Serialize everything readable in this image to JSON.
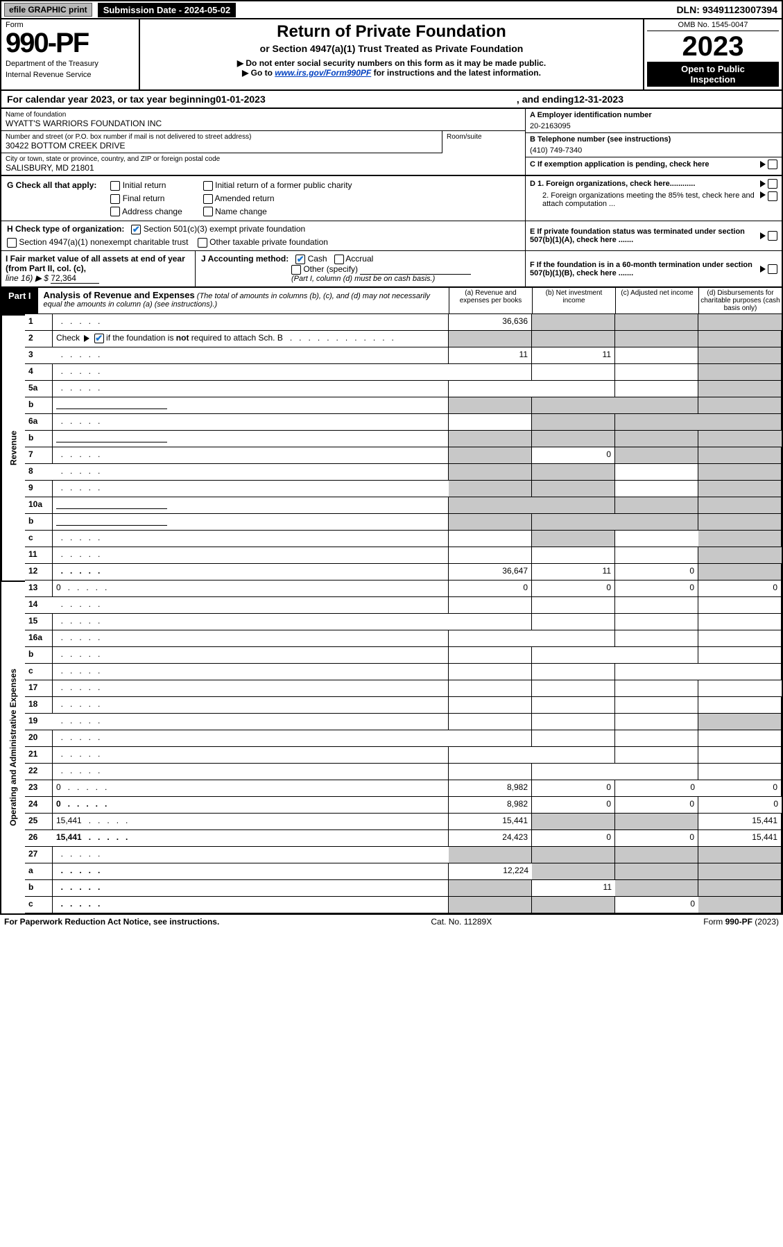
{
  "colors": {
    "black": "#000000",
    "white": "#ffffff",
    "grey_btn": "#b8b8b8",
    "blue_check": "#1976d2",
    "link_blue": "#0040c0",
    "shade": "#c8c8c8"
  },
  "top_bar": {
    "efile": "efile GRAPHIC print",
    "submission": "Submission Date - 2024-05-02",
    "dln": "DLN: 93491123007394"
  },
  "header": {
    "form_word": "Form",
    "form_no": "990-PF",
    "dept": "Department of the Treasury",
    "irs": "Internal Revenue Service",
    "title": "Return of Private Foundation",
    "subtitle": "or Section 4947(a)(1) Trust Treated as Private Foundation",
    "note1": "▶ Do not enter social security numbers on this form as it may be made public.",
    "note2_pre": "▶ Go to ",
    "note2_link": "www.irs.gov/Form990PF",
    "note2_post": " for instructions and the latest information.",
    "omb": "OMB No. 1545-0047",
    "year": "2023",
    "open1": "Open to Public",
    "open2": "Inspection"
  },
  "cal_year": {
    "pre": "For calendar year 2023, or tax year beginning ",
    "begin": "01-01-2023",
    "mid": ", and ending ",
    "end": "12-31-2023"
  },
  "entity": {
    "name_label": "Name of foundation",
    "name": "WYATT'S WARRIORS FOUNDATION INC",
    "addr_label": "Number and street (or P.O. box number if mail is not delivered to street address)",
    "addr": "30422 BOTTOM CREEK DRIVE",
    "room_label": "Room/suite",
    "city_label": "City or town, state or province, country, and ZIP or foreign postal code",
    "city": "SALISBURY, MD  21801",
    "a": "A Employer identification number",
    "a_val": "20-2163095",
    "b": "B Telephone number (see instructions)",
    "b_val": "(410) 749-7340",
    "c": "C If exemption application is pending, check here"
  },
  "g": {
    "label": "G Check all that apply:",
    "opts": [
      "Initial return",
      "Final return",
      "Address change",
      "Initial return of a former public charity",
      "Amended return",
      "Name change"
    ],
    "d1": "D 1. Foreign organizations, check here............",
    "d2": "2. Foreign organizations meeting the 85% test, check here and attach computation ...",
    "e": "E  If private foundation status was terminated under section 507(b)(1)(A), check here ......."
  },
  "h": {
    "label": "H Check type of organization:",
    "opt1": "Section 501(c)(3) exempt private foundation",
    "opt2": "Section 4947(a)(1) nonexempt charitable trust",
    "opt3": "Other taxable private foundation"
  },
  "i": {
    "label": "I Fair market value of all assets at end of year (from Part II, col. (c),",
    "line16": "line 16) ▶ $",
    "val": "72,364"
  },
  "j": {
    "label": "J Accounting method:",
    "cash": "Cash",
    "accrual": "Accrual",
    "other": "Other (specify)",
    "note": "(Part I, column (d) must be on cash basis.)"
  },
  "f": "F  If the foundation is in a 60-month termination under section 507(b)(1)(B), check here .......",
  "part1": {
    "label": "Part I",
    "title": "Analysis of Revenue and Expenses",
    "note": " (The total of amounts in columns (b), (c), and (d) may not necessarily equal the amounts in column (a) (see instructions).)",
    "col_a": "(a)   Revenue and expenses per books",
    "col_b": "(b)   Net investment income",
    "col_c": "(c)   Adjusted net income",
    "col_d": "(d)   Disbursements for charitable purposes (cash basis only)"
  },
  "side_rev": "Revenue",
  "side_exp": "Operating and Administrative Expenses",
  "rows": [
    {
      "n": "1",
      "d": "",
      "a": "36,636",
      "b": "",
      "c": "",
      "a_shade": false,
      "b_shade": true,
      "c_shade": true,
      "d_shade": true
    },
    {
      "n": "2",
      "d": "",
      "a": "",
      "b": "",
      "c": "",
      "a_shade": true,
      "b_shade": true,
      "c_shade": true,
      "d_shade": true,
      "has_check": true
    },
    {
      "n": "3",
      "d": "",
      "a": "11",
      "b": "11",
      "c": "",
      "d_shade": true
    },
    {
      "n": "4",
      "d": "",
      "a": "",
      "b": "",
      "c": "",
      "d_shade": true
    },
    {
      "n": "5a",
      "d": "",
      "a": "",
      "b": "",
      "c": "",
      "d_shade": true
    },
    {
      "n": "b",
      "d": "",
      "a": "",
      "b": "",
      "c": "",
      "a_shade": true,
      "b_shade": true,
      "c_shade": true,
      "d_shade": true,
      "has_sub": true
    },
    {
      "n": "6a",
      "d": "",
      "a": "",
      "b": "",
      "c": "",
      "b_shade": true,
      "c_shade": true,
      "d_shade": true
    },
    {
      "n": "b",
      "d": "",
      "a": "",
      "b": "",
      "c": "",
      "a_shade": true,
      "b_shade": true,
      "c_shade": true,
      "d_shade": true,
      "has_sub": true
    },
    {
      "n": "7",
      "d": "",
      "a": "",
      "b": "0",
      "c": "",
      "a_shade": true,
      "c_shade": true,
      "d_shade": true
    },
    {
      "n": "8",
      "d": "",
      "a": "",
      "b": "",
      "c": "",
      "a_shade": true,
      "b_shade": true,
      "d_shade": true
    },
    {
      "n": "9",
      "d": "",
      "a": "",
      "b": "",
      "c": "",
      "a_shade": true,
      "b_shade": true,
      "d_shade": true
    },
    {
      "n": "10a",
      "d": "",
      "a": "",
      "b": "",
      "c": "",
      "a_shade": true,
      "b_shade": true,
      "c_shade": true,
      "d_shade": true,
      "has_sub": true
    },
    {
      "n": "b",
      "d": "",
      "a": "",
      "b": "",
      "c": "",
      "a_shade": true,
      "b_shade": true,
      "c_shade": true,
      "d_shade": true,
      "has_sub": true
    },
    {
      "n": "c",
      "d": "",
      "a": "",
      "b": "",
      "c": "",
      "b_shade": true,
      "d_shade": true
    },
    {
      "n": "11",
      "d": "",
      "a": "",
      "b": "",
      "c": "",
      "d_shade": true
    },
    {
      "n": "12",
      "d": "",
      "a": "36,647",
      "b": "11",
      "c": "0",
      "bold": true,
      "d_shade": true
    },
    {
      "n": "13",
      "d": "0",
      "a": "0",
      "b": "0",
      "c": "0"
    },
    {
      "n": "14",
      "d": "",
      "a": "",
      "b": "",
      "c": ""
    },
    {
      "n": "15",
      "d": "",
      "a": "",
      "b": "",
      "c": ""
    },
    {
      "n": "16a",
      "d": "",
      "a": "",
      "b": "",
      "c": ""
    },
    {
      "n": "b",
      "d": "",
      "a": "",
      "b": "",
      "c": ""
    },
    {
      "n": "c",
      "d": "",
      "a": "",
      "b": "",
      "c": ""
    },
    {
      "n": "17",
      "d": "",
      "a": "",
      "b": "",
      "c": ""
    },
    {
      "n": "18",
      "d": "",
      "a": "",
      "b": "",
      "c": ""
    },
    {
      "n": "19",
      "d": "",
      "a": "",
      "b": "",
      "c": "",
      "d_shade": true
    },
    {
      "n": "20",
      "d": "",
      "a": "",
      "b": "",
      "c": ""
    },
    {
      "n": "21",
      "d": "",
      "a": "",
      "b": "",
      "c": ""
    },
    {
      "n": "22",
      "d": "",
      "a": "",
      "b": "",
      "c": ""
    },
    {
      "n": "23",
      "d": "0",
      "a": "8,982",
      "b": "0",
      "c": "0"
    },
    {
      "n": "24",
      "d": "0",
      "a": "8,982",
      "b": "0",
      "c": "0",
      "bold": true
    },
    {
      "n": "25",
      "d": "15,441",
      "a": "15,441",
      "b": "",
      "c": "",
      "b_shade": true,
      "c_shade": true
    },
    {
      "n": "26",
      "d": "15,441",
      "a": "24,423",
      "b": "0",
      "c": "0",
      "bold": true
    },
    {
      "n": "27",
      "d": "",
      "a": "",
      "b": "",
      "c": "",
      "a_shade": true,
      "b_shade": true,
      "c_shade": true,
      "d_shade": true
    },
    {
      "n": "a",
      "d": "",
      "a": "12,224",
      "b": "",
      "c": "",
      "bold": true,
      "b_shade": true,
      "c_shade": true,
      "d_shade": true
    },
    {
      "n": "b",
      "d": "",
      "a": "",
      "b": "11",
      "c": "",
      "bold": true,
      "a_shade": true,
      "c_shade": true,
      "d_shade": true
    },
    {
      "n": "c",
      "d": "",
      "a": "",
      "b": "",
      "c": "0",
      "bold": true,
      "a_shade": true,
      "b_shade": true,
      "d_shade": true
    }
  ],
  "footer": {
    "left": "For Paperwork Reduction Act Notice, see instructions.",
    "mid": "Cat. No. 11289X",
    "right": "Form 990-PF (2023)"
  }
}
